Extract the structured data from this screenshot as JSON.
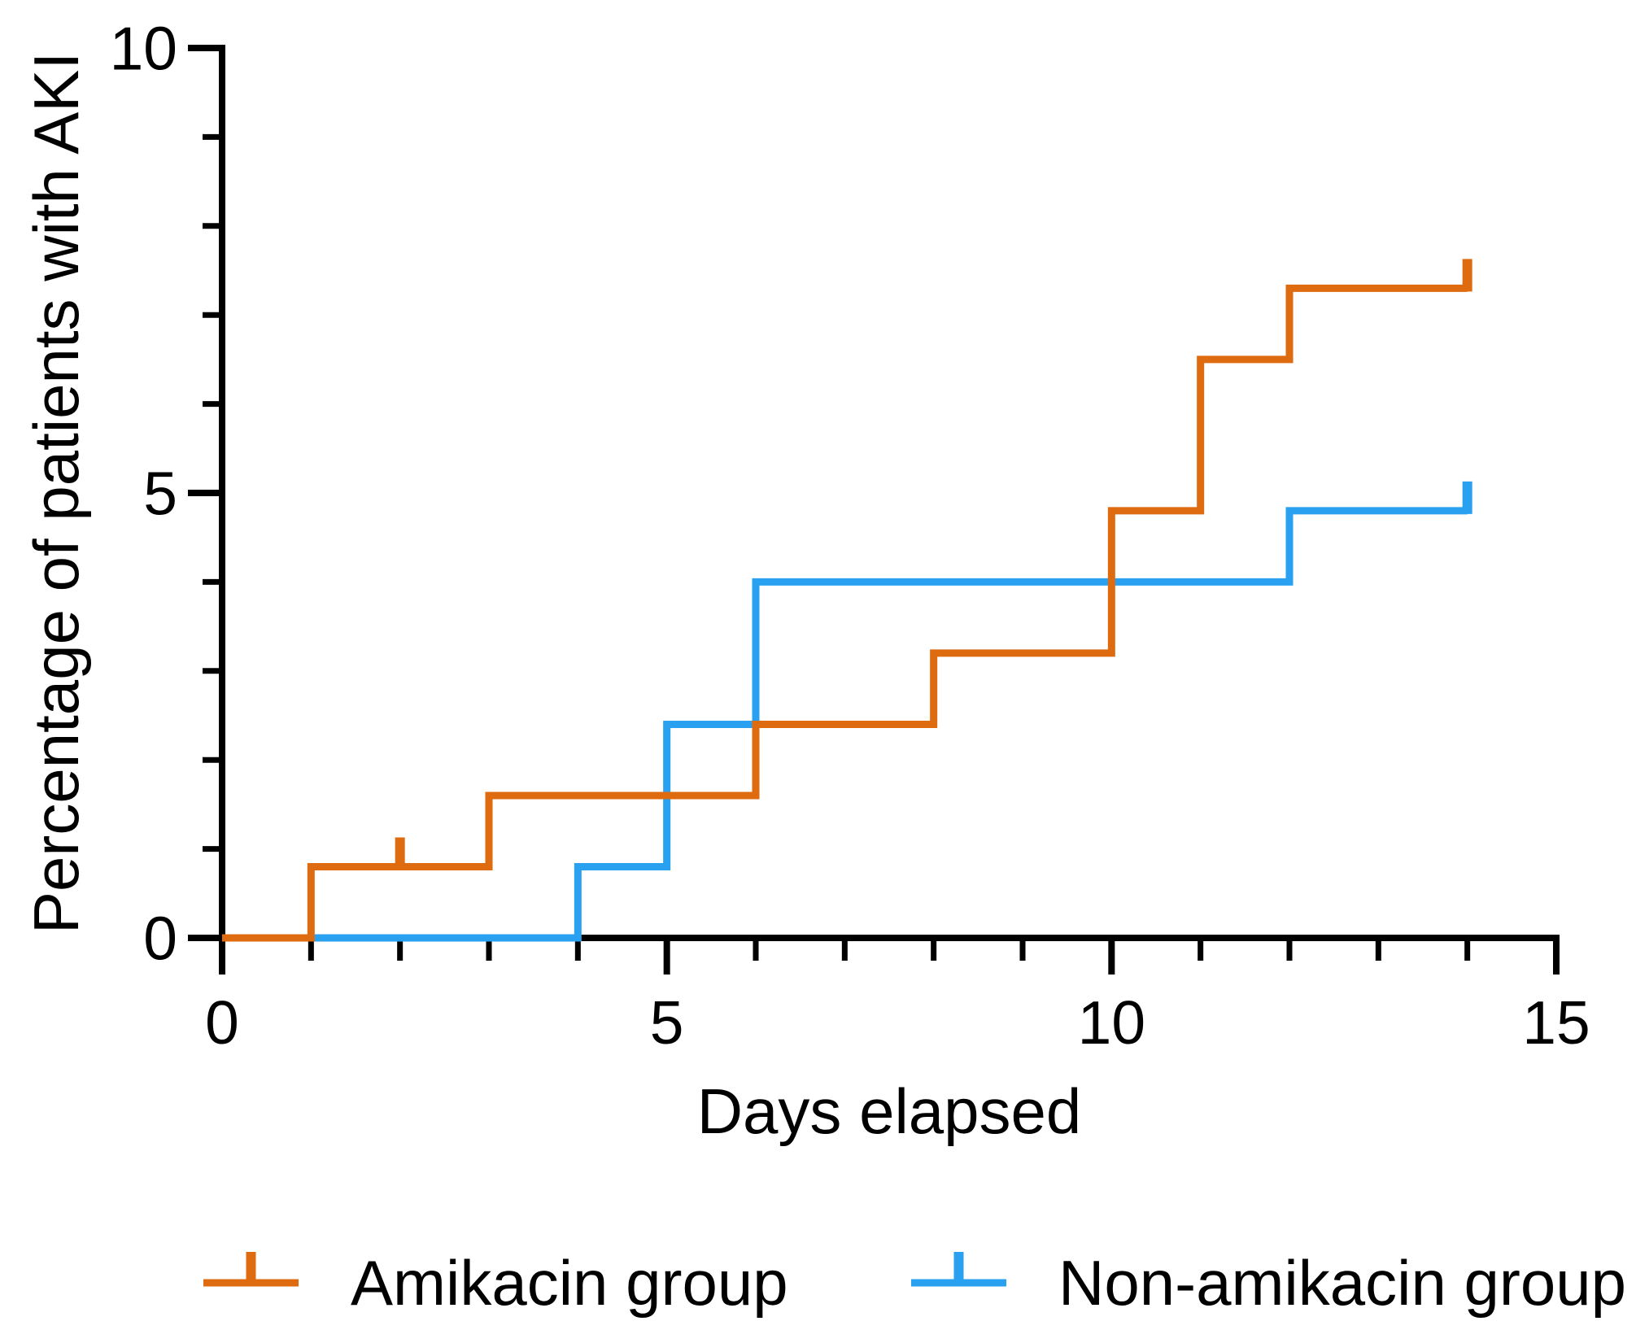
{
  "page": {
    "background": "#ffffff"
  },
  "chart_data": {
    "type": "line",
    "subtype": "kaplan-meier-cumulative-incidence-step",
    "title": "",
    "xlabel": "Days elapsed",
    "ylabel": "Percentage of patients with AKI",
    "xlim": [
      0,
      15
    ],
    "ylim": [
      0,
      10
    ],
    "x_major_ticks": [
      0,
      5,
      10,
      15
    ],
    "x_minor_tick_interval": 1,
    "y_major_ticks": [
      0,
      5,
      10
    ],
    "y_minor_tick_interval": 1,
    "grid": false,
    "legend_position": "bottom",
    "axis_color": "#000000",
    "series": [
      {
        "name": "Amikacin group",
        "color": "#DE6B10",
        "x": [
          0,
          1,
          3,
          6,
          8,
          10,
          11,
          12,
          14
        ],
        "y": [
          0,
          0.8,
          1.6,
          2.4,
          3.2,
          4.8,
          6.5,
          7.3,
          7.3
        ],
        "censor_marks": [
          {
            "x": 2,
            "y": 0.8
          },
          {
            "x": 14,
            "y": 7.3
          }
        ]
      },
      {
        "name": "Non-amikacin group",
        "color": "#2AA1F0",
        "x": [
          0,
          4,
          5,
          6,
          12,
          14
        ],
        "y": [
          0,
          0.8,
          2.4,
          4.0,
          4.8,
          4.8
        ],
        "censor_marks": [
          {
            "x": 14,
            "y": 4.8
          }
        ]
      }
    ]
  }
}
